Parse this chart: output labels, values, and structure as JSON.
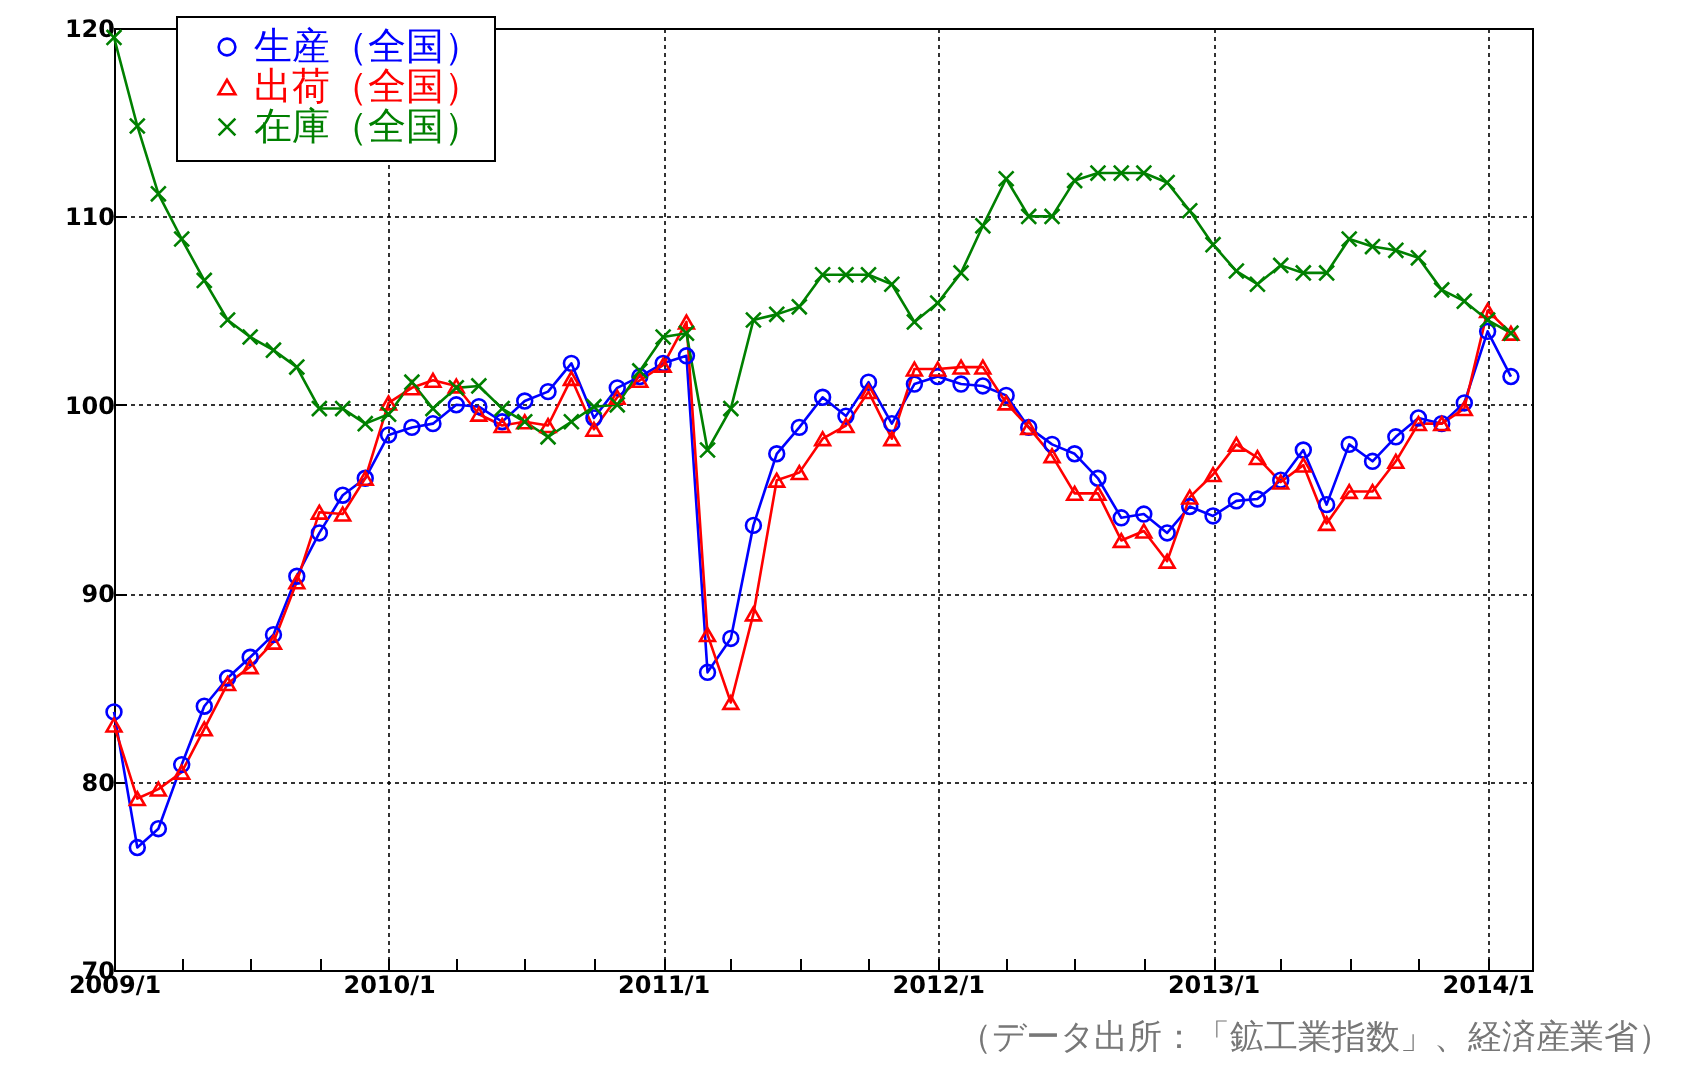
{
  "chart_data": {
    "type": "line",
    "x": [
      "2009-01",
      "2009-02",
      "2009-03",
      "2009-04",
      "2009-05",
      "2009-06",
      "2009-07",
      "2009-08",
      "2009-09",
      "2009-10",
      "2009-11",
      "2009-12",
      "2010-01",
      "2010-02",
      "2010-03",
      "2010-04",
      "2010-05",
      "2010-06",
      "2010-07",
      "2010-08",
      "2010-09",
      "2010-10",
      "2010-11",
      "2010-12",
      "2011-01",
      "2011-02",
      "2011-03",
      "2011-04",
      "2011-05",
      "2011-06",
      "2011-07",
      "2011-08",
      "2011-09",
      "2011-10",
      "2011-11",
      "2011-12",
      "2012-01",
      "2012-02",
      "2012-03",
      "2012-04",
      "2012-05",
      "2012-06",
      "2012-07",
      "2012-08",
      "2012-09",
      "2012-10",
      "2012-11",
      "2012-12",
      "2013-01",
      "2013-02",
      "2013-03",
      "2013-04",
      "2013-05",
      "2013-06",
      "2013-07",
      "2013-08",
      "2013-09",
      "2013-10",
      "2013-11",
      "2013-12",
      "2014-01",
      "2014-02"
    ],
    "series": [
      {
        "name": "生産（全国）",
        "color": "#0000ff",
        "marker": "circle",
        "values": [
          83.7,
          76.5,
          77.5,
          80.9,
          84.0,
          85.5,
          86.6,
          87.8,
          90.9,
          93.2,
          95.2,
          96.1,
          98.4,
          98.8,
          99.0,
          100.0,
          99.9,
          99.1,
          100.2,
          100.7,
          102.2,
          99.3,
          100.9,
          101.5,
          102.2,
          102.6,
          85.8,
          87.6,
          93.6,
          97.4,
          98.8,
          100.4,
          99.4,
          101.2,
          99.0,
          101.1,
          101.5,
          101.1,
          101.0,
          100.5,
          98.8,
          97.9,
          97.4,
          96.1,
          94.0,
          94.2,
          93.2,
          94.6,
          94.1,
          94.9,
          95.0,
          96.0,
          97.6,
          94.7,
          97.9,
          97.0,
          98.3,
          99.3,
          99.0,
          100.1,
          103.9,
          101.5
        ]
      },
      {
        "name": "出荷（全国）",
        "color": "#ff0000",
        "marker": "triangle",
        "values": [
          83.0,
          79.1,
          79.6,
          80.5,
          82.8,
          85.2,
          86.1,
          87.4,
          90.6,
          94.3,
          94.2,
          96.1,
          100.1,
          100.9,
          101.3,
          101.0,
          99.5,
          98.9,
          99.1,
          98.9,
          101.4,
          98.7,
          100.4,
          101.3,
          102.1,
          104.4,
          87.8,
          84.2,
          88.9,
          96.0,
          96.4,
          98.2,
          98.9,
          100.7,
          98.2,
          101.9,
          101.9,
          102.0,
          102.0,
          100.1,
          98.8,
          97.3,
          95.3,
          95.3,
          92.8,
          93.3,
          91.7,
          95.1,
          96.3,
          97.9,
          97.2,
          95.9,
          96.8,
          93.7,
          95.4,
          95.4,
          97.0,
          99.0,
          99.0,
          99.8,
          105.0,
          103.8
        ]
      },
      {
        "name": "在庫（全国）",
        "color": "#008000",
        "marker": "cross",
        "values": [
          119.5,
          114.8,
          111.2,
          108.8,
          106.6,
          104.5,
          103.6,
          102.9,
          102.0,
          99.8,
          99.8,
          99.0,
          99.5,
          101.2,
          99.8,
          100.9,
          101.0,
          99.8,
          99.1,
          98.3,
          99.1,
          99.9,
          100.0,
          101.8,
          103.6,
          103.8,
          97.6,
          99.8,
          104.5,
          104.8,
          105.2,
          106.9,
          106.9,
          106.9,
          106.4,
          104.4,
          105.4,
          107.0,
          109.5,
          112.0,
          110.0,
          110.0,
          111.9,
          112.3,
          112.3,
          112.3,
          111.8,
          110.3,
          108.5,
          107.1,
          106.4,
          107.4,
          107.0,
          107.0,
          108.8,
          108.4,
          108.2,
          107.8,
          106.1,
          105.5,
          104.5,
          103.8
        ]
      }
    ],
    "xlim": [
      "2009-01",
      "2014-03"
    ],
    "xticks": [
      {
        "value": "2009-01",
        "label": "2009/1"
      },
      {
        "value": "2009-04",
        "label": null
      },
      {
        "value": "2009-07",
        "label": null
      },
      {
        "value": "2009-10",
        "label": null
      },
      {
        "value": "2010-01",
        "label": "2010/1"
      },
      {
        "value": "2010-04",
        "label": null
      },
      {
        "value": "2010-07",
        "label": null
      },
      {
        "value": "2010-10",
        "label": null
      },
      {
        "value": "2011-01",
        "label": "2011/1"
      },
      {
        "value": "2011-04",
        "label": null
      },
      {
        "value": "2011-07",
        "label": null
      },
      {
        "value": "2011-10",
        "label": null
      },
      {
        "value": "2012-01",
        "label": "2012/1"
      },
      {
        "value": "2012-04",
        "label": null
      },
      {
        "value": "2012-07",
        "label": null
      },
      {
        "value": "2012-10",
        "label": null
      },
      {
        "value": "2013-01",
        "label": "2013/1"
      },
      {
        "value": "2013-04",
        "label": null
      },
      {
        "value": "2013-07",
        "label": null
      },
      {
        "value": "2013-10",
        "label": null
      },
      {
        "value": "2014-01",
        "label": "2014/1"
      }
    ],
    "ylim": [
      70,
      120
    ],
    "yticks": [
      70,
      80,
      90,
      100,
      110,
      120
    ],
    "grid": true,
    "legend": "top left",
    "line_style": "solid",
    "annotations": [
      "（データ出所：「鉱工業指数」、経済産業省）"
    ]
  }
}
